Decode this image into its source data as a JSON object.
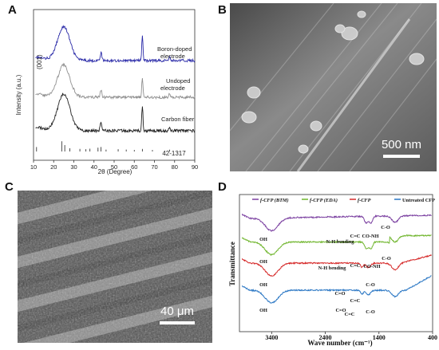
{
  "panels": {
    "a": {
      "letter": "A"
    },
    "b": {
      "letter": "B",
      "scale_bar": "500 nm"
    },
    "c": {
      "letter": "C",
      "scale_bar": "40 μm"
    },
    "d": {
      "letter": "D"
    }
  },
  "chart_data": [
    {
      "type": "line",
      "panel": "A",
      "xlabel": "2θ (Degree)",
      "ylabel": "Intensity (a.u.)",
      "xlim": [
        10,
        90
      ],
      "xticks": [
        10,
        20,
        30,
        40,
        50,
        60,
        70,
        80,
        90
      ],
      "annotations": [
        "(001)",
        "42-1317"
      ],
      "series": [
        {
          "name": "Boron-doped electrode",
          "color": "#2a2aa8",
          "peaks": [
            {
              "x": 25,
              "h": 1.0,
              "w": 3
            },
            {
              "x": 43.5,
              "h": 0.25,
              "w": 0.4
            },
            {
              "x": 64,
              "h": 0.75,
              "w": 0.3
            },
            {
              "x": 77.5,
              "h": 0.12,
              "w": 0.4
            }
          ]
        },
        {
          "name": "Undoped electrode",
          "color": "#909090",
          "peaks": [
            {
              "x": 25,
              "h": 0.95,
              "w": 3
            },
            {
              "x": 43.5,
              "h": 0.2,
              "w": 0.4
            },
            {
              "x": 64,
              "h": 0.55,
              "w": 0.3
            },
            {
              "x": 77.5,
              "h": 0.1,
              "w": 0.4
            }
          ]
        },
        {
          "name": "Carbon fiber",
          "color": "#222222",
          "peaks": [
            {
              "x": 25,
              "h": 1.0,
              "w": 3
            },
            {
              "x": 43.5,
              "h": 0.25,
              "w": 0.4
            },
            {
              "x": 64,
              "h": 0.7,
              "w": 0.3
            },
            {
              "x": 77.5,
              "h": 0.1,
              "w": 0.4
            }
          ]
        }
      ],
      "reference_sticks": [
        {
          "x": 11.5,
          "h": 0.35
        },
        {
          "x": 24,
          "h": 0.8
        },
        {
          "x": 25.5,
          "h": 0.5
        },
        {
          "x": 28,
          "h": 0.25
        },
        {
          "x": 33,
          "h": 0.2
        },
        {
          "x": 36,
          "h": 0.18
        },
        {
          "x": 38,
          "h": 0.22
        },
        {
          "x": 42,
          "h": 0.3
        },
        {
          "x": 43.5,
          "h": 0.35
        },
        {
          "x": 46,
          "h": 0.15
        },
        {
          "x": 52,
          "h": 0.18
        },
        {
          "x": 56,
          "h": 0.15
        },
        {
          "x": 60,
          "h": 0.12
        },
        {
          "x": 64,
          "h": 0.2
        },
        {
          "x": 69,
          "h": 0.12
        },
        {
          "x": 77.5,
          "h": 0.14
        }
      ]
    },
    {
      "type": "line",
      "panel": "D",
      "xlabel": "Wave number (cm⁻¹)",
      "ylabel": "Transmittance",
      "xlim": [
        4000,
        400
      ],
      "xticks": [
        3400,
        2400,
        1400,
        400
      ],
      "series": [
        {
          "name": "f-CFP (BTM)",
          "color": "#7a3fa0"
        },
        {
          "name": "f-CFP (EDA)",
          "color": "#6fb52c"
        },
        {
          "name": "f-CFP",
          "color": "#d62a2a"
        },
        {
          "name": "Untreated CFP",
          "color": "#2b77c4"
        }
      ],
      "annotations": [
        {
          "text": "OH",
          "series": 0
        },
        {
          "text": "N-H bending",
          "series": 0
        },
        {
          "text": "C=C",
          "series": 0
        },
        {
          "text": "CO-NH",
          "series": 0
        },
        {
          "text": "C-O",
          "series": 0
        },
        {
          "text": "OH",
          "series": 1
        },
        {
          "text": "N-H bending",
          "series": 1
        },
        {
          "text": "C=C",
          "series": 1
        },
        {
          "text": "CO-NH",
          "series": 1
        },
        {
          "text": "C-O",
          "series": 1
        },
        {
          "text": "OH",
          "series": 2
        },
        {
          "text": "C=O",
          "series": 2
        },
        {
          "text": "C=C",
          "series": 2
        },
        {
          "text": "C-O",
          "series": 2
        },
        {
          "text": "OH",
          "series": 3
        },
        {
          "text": "C=O",
          "series": 3
        },
        {
          "text": "C=C",
          "series": 3
        },
        {
          "text": "C-O",
          "series": 3
        }
      ]
    }
  ]
}
